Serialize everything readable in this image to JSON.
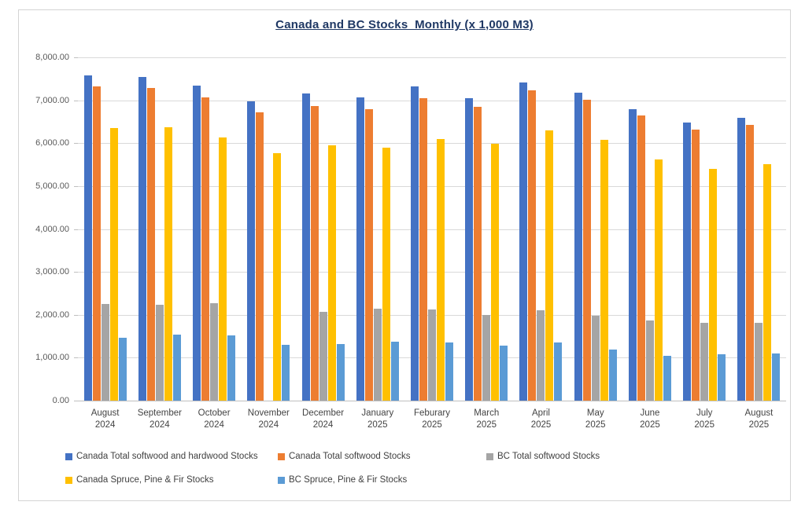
{
  "chart_data": {
    "type": "bar",
    "title": "Canada and BC Stocks  Monthly (x 1,000 M3)",
    "title_color": "#1F3864",
    "grid": true,
    "legend_position": "bottom",
    "y_axis": {
      "min": 0,
      "max": 8000,
      "step": 1000,
      "tick_labels": [
        "0.00",
        "1,000.00",
        "2,000.00",
        "3,000.00",
        "4,000.00",
        "5,000.00",
        "6,000.00",
        "7,000.00",
        "8,000.00"
      ]
    },
    "categories": [
      {
        "month": "August",
        "year": "2024"
      },
      {
        "month": "September",
        "year": "2024"
      },
      {
        "month": "October",
        "year": "2024"
      },
      {
        "month": "November",
        "year": "2024"
      },
      {
        "month": "December",
        "year": "2024"
      },
      {
        "month": "January",
        "year": "2025"
      },
      {
        "month": "Feburary",
        "year": "2025"
      },
      {
        "month": "March",
        "year": "2025"
      },
      {
        "month": "April",
        "year": "2025"
      },
      {
        "month": "May",
        "year": "2025"
      },
      {
        "month": "June",
        "year": "2025"
      },
      {
        "month": "July",
        "year": "2025"
      },
      {
        "month": "August",
        "year": "2025"
      }
    ],
    "series": [
      {
        "key": "canada-total-softwood-hardwood",
        "name": "Canada Total softwood and hardwood Stocks",
        "color": "#4472C4",
        "values": [
          7580,
          7550,
          7350,
          6980,
          7160,
          7070,
          7330,
          7050,
          7410,
          7180,
          6800,
          6490,
          6600
        ]
      },
      {
        "key": "canada-total-softwood",
        "name": "Canada Total softwood Stocks",
        "color": "#ED7D31",
        "values": [
          7320,
          7290,
          7060,
          6720,
          6870,
          6790,
          7050,
          6850,
          7240,
          7010,
          6640,
          6320,
          6430
        ]
      },
      {
        "key": "bc-total-softwood",
        "name": "BC Total softwood Stocks",
        "color": "#A5A5A5",
        "values": [
          2260,
          2240,
          2270,
          0,
          2070,
          2140,
          2130,
          2000,
          2110,
          1970,
          1870,
          1810,
          1820
        ]
      },
      {
        "key": "canada-spf",
        "name": "Canada Spruce, Pine & Fir Stocks",
        "color": "#FFC000",
        "values": [
          6350,
          6370,
          6130,
          5760,
          5950,
          5890,
          6100,
          5990,
          6300,
          6070,
          5630,
          5410,
          5510
        ]
      },
      {
        "key": "bc-spf",
        "name": "BC Spruce, Pine & Fir Stocks",
        "color": "#5B9BD5",
        "values": [
          1470,
          1530,
          1520,
          1300,
          1310,
          1370,
          1360,
          1280,
          1360,
          1190,
          1050,
          1080,
          1100
        ]
      }
    ],
    "legend_rows": [
      [
        0,
        1,
        2
      ],
      [
        3,
        4
      ]
    ]
  }
}
